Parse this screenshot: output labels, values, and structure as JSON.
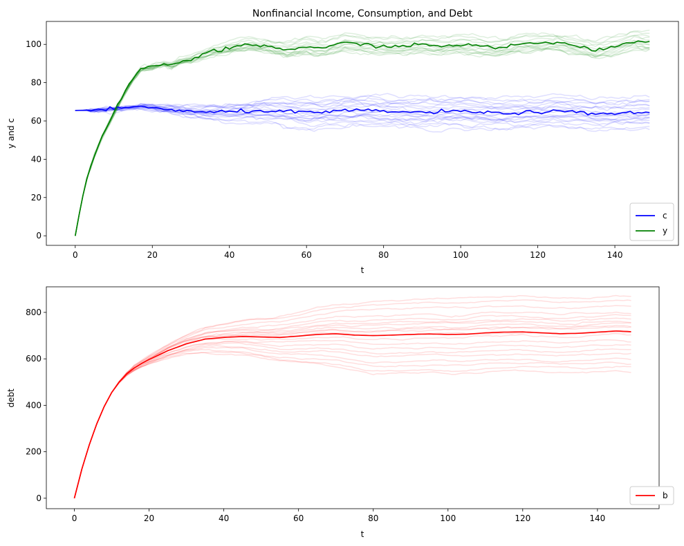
{
  "chart_data": [
    {
      "type": "line",
      "title": "Nonfinancial Income, Consumption, and Debt",
      "xlabel": "t",
      "ylabel": "y and c",
      "xlim": [
        -7.5,
        156.5
      ],
      "ylim": [
        -5,
        112
      ],
      "xticks": [
        0,
        20,
        40,
        60,
        80,
        100,
        120,
        140
      ],
      "yticks": [
        0,
        20,
        40,
        60,
        80,
        100
      ],
      "legend_position": "lower-right",
      "grid": false,
      "series": [
        {
          "name": "c",
          "color": "#0000ff",
          "x": [
            0,
            5,
            10,
            15,
            17,
            20,
            25,
            30,
            35,
            40,
            45,
            50,
            55,
            60,
            65,
            70,
            75,
            80,
            85,
            90,
            95,
            100,
            105,
            110,
            115,
            120,
            125,
            130,
            135,
            140,
            145,
            149
          ],
          "y": [
            65.5,
            65.6,
            66.2,
            67.2,
            67.8,
            67.0,
            65.8,
            64.8,
            64.5,
            64.8,
            65.1,
            65.5,
            64.9,
            64.3,
            64.6,
            65.3,
            65.5,
            65.2,
            64.6,
            64.4,
            64.9,
            65.0,
            64.5,
            64.0,
            64.4,
            64.6,
            64.9,
            64.5,
            63.7,
            64.0,
            64.3,
            64.5
          ],
          "paths_color": "#0000ff",
          "paths": [
            {
              "end": 72.5
            },
            {
              "end": 71.0
            },
            {
              "end": 69.5
            },
            {
              "end": 68.0
            },
            {
              "end": 67.0
            },
            {
              "end": 66.0
            },
            {
              "end": 65.0
            },
            {
              "end": 63.5
            },
            {
              "end": 62.5
            },
            {
              "end": 61.5
            },
            {
              "end": 60.5
            },
            {
              "end": 59.5
            },
            {
              "end": 58.5
            },
            {
              "end": 57.0
            },
            {
              "end": 56.0
            },
            {
              "end": 70.0
            },
            {
              "end": 64.0
            },
            {
              "end": 61.0
            },
            {
              "end": 68.5
            },
            {
              "end": 62.0
            }
          ]
        },
        {
          "name": "y",
          "color": "#008000",
          "x": [
            0,
            1,
            2,
            3,
            5,
            7,
            10,
            12,
            15,
            17,
            20,
            23,
            25,
            27,
            30,
            35,
            40,
            45,
            50,
            55,
            60,
            65,
            70,
            75,
            80,
            85,
            90,
            95,
            100,
            105,
            110,
            115,
            120,
            125,
            130,
            135,
            140,
            145,
            149
          ],
          "y": [
            0,
            11,
            21,
            30,
            42,
            52,
            64,
            72,
            82,
            87,
            88,
            90,
            89,
            91,
            92,
            96,
            98,
            100,
            99,
            97,
            99,
            98,
            101,
            100,
            99,
            99,
            100,
            99,
            100,
            99,
            98,
            100,
            101,
            101,
            99,
            97,
            99,
            102,
            101
          ],
          "paths_color": "#008000",
          "paths": [
            {
              "end": 106
            },
            {
              "end": 104
            },
            {
              "end": 103
            },
            {
              "end": 102
            },
            {
              "end": 101
            },
            {
              "end": 100
            },
            {
              "end": 99
            },
            {
              "end": 98
            },
            {
              "end": 97
            },
            {
              "end": 96.5
            },
            {
              "end": 105
            },
            {
              "end": 99.5
            },
            {
              "end": 98.5
            },
            {
              "end": 100.5
            },
            {
              "end": 97.5
            }
          ]
        }
      ]
    },
    {
      "type": "line",
      "title": "",
      "xlabel": "t",
      "ylabel": "debt",
      "xlim": [
        -7.5,
        156.5
      ],
      "ylim": [
        -45,
        910
      ],
      "xticks": [
        0,
        20,
        40,
        60,
        80,
        100,
        120,
        140
      ],
      "yticks": [
        0,
        200,
        400,
        600,
        800
      ],
      "legend_position": "lower-right",
      "grid": false,
      "series": [
        {
          "name": "b",
          "color": "#ff0000",
          "x": [
            0,
            2,
            4,
            6,
            8,
            10,
            12,
            14,
            16,
            18,
            20,
            25,
            30,
            35,
            40,
            45,
            50,
            55,
            60,
            65,
            70,
            75,
            80,
            85,
            90,
            95,
            100,
            105,
            110,
            115,
            120,
            125,
            130,
            135,
            140,
            145,
            149
          ],
          "y": [
            0,
            125,
            230,
            320,
            395,
            455,
            500,
            535,
            560,
            580,
            597,
            635,
            665,
            685,
            692,
            696,
            694,
            692,
            698,
            705,
            708,
            702,
            700,
            702,
            705,
            707,
            705,
            706,
            712,
            715,
            716,
            712,
            708,
            710,
            715,
            720,
            717
          ],
          "paths_color": "#ff0000",
          "paths": [
            {
              "end": 870
            },
            {
              "end": 850
            },
            {
              "end": 830
            },
            {
              "end": 800
            },
            {
              "end": 785
            },
            {
              "end": 770
            },
            {
              "end": 760
            },
            {
              "end": 750
            },
            {
              "end": 735
            },
            {
              "end": 715
            },
            {
              "end": 700
            },
            {
              "end": 680
            },
            {
              "end": 660
            },
            {
              "end": 640
            },
            {
              "end": 625
            },
            {
              "end": 600
            },
            {
              "end": 580
            },
            {
              "end": 560
            },
            {
              "end": 545
            },
            {
              "end": 740
            }
          ]
        }
      ]
    }
  ]
}
